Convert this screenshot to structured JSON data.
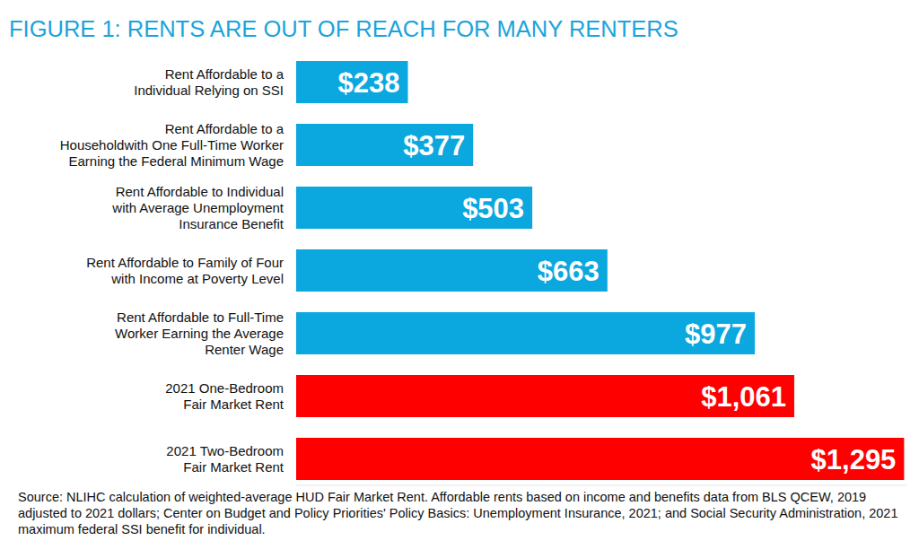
{
  "chart_data": {
    "type": "bar",
    "orientation": "horizontal",
    "title": "FIGURE 1: RENTS ARE OUT OF REACH FOR MANY RENTERS",
    "source": "Source: NLIHC calculation of weighted-average HUD Fair Market Rent. Affordable rents based on income and benefits data from BLS QCEW, 2019 adjusted to 2021 dollars; Center on Budget and Policy Priorities' Policy Basics: Unemployment Insurance, 2021; and Social Security Administration, 2021 maximum federal SSI benefit for individual.",
    "categories": [
      "Rent Affordable to a\nIndividual Relying on SSI",
      "Rent Affordable to a\nHouseholdwith One Full-Time Worker\nEarning the Federal Minimum Wage",
      "Rent Affordable to Individual\nwith Average Unemployment\nInsurance Benefit",
      "Rent Affordable to Family of Four\nwith Income at Poverty Level",
      "Rent Affordable to Full-Time\nWorker Earning the Average\nRenter Wage",
      "2021 One-Bedroom\nFair Market Rent",
      "2021 Two-Bedroom\nFair Market Rent"
    ],
    "values": [
      238,
      377,
      503,
      663,
      977,
      1061,
      1295
    ],
    "value_labels": [
      "$238",
      "$377",
      "$503",
      "$663",
      "$977",
      "$1,061",
      "$1,295"
    ],
    "colors": [
      "#0ba7df",
      "#0ba7df",
      "#0ba7df",
      "#0ba7df",
      "#0ba7df",
      "#ff0000",
      "#ff0000"
    ],
    "xlim": [
      0,
      1300
    ],
    "grid": false,
    "data_labels": true,
    "tick_labels": "y"
  }
}
